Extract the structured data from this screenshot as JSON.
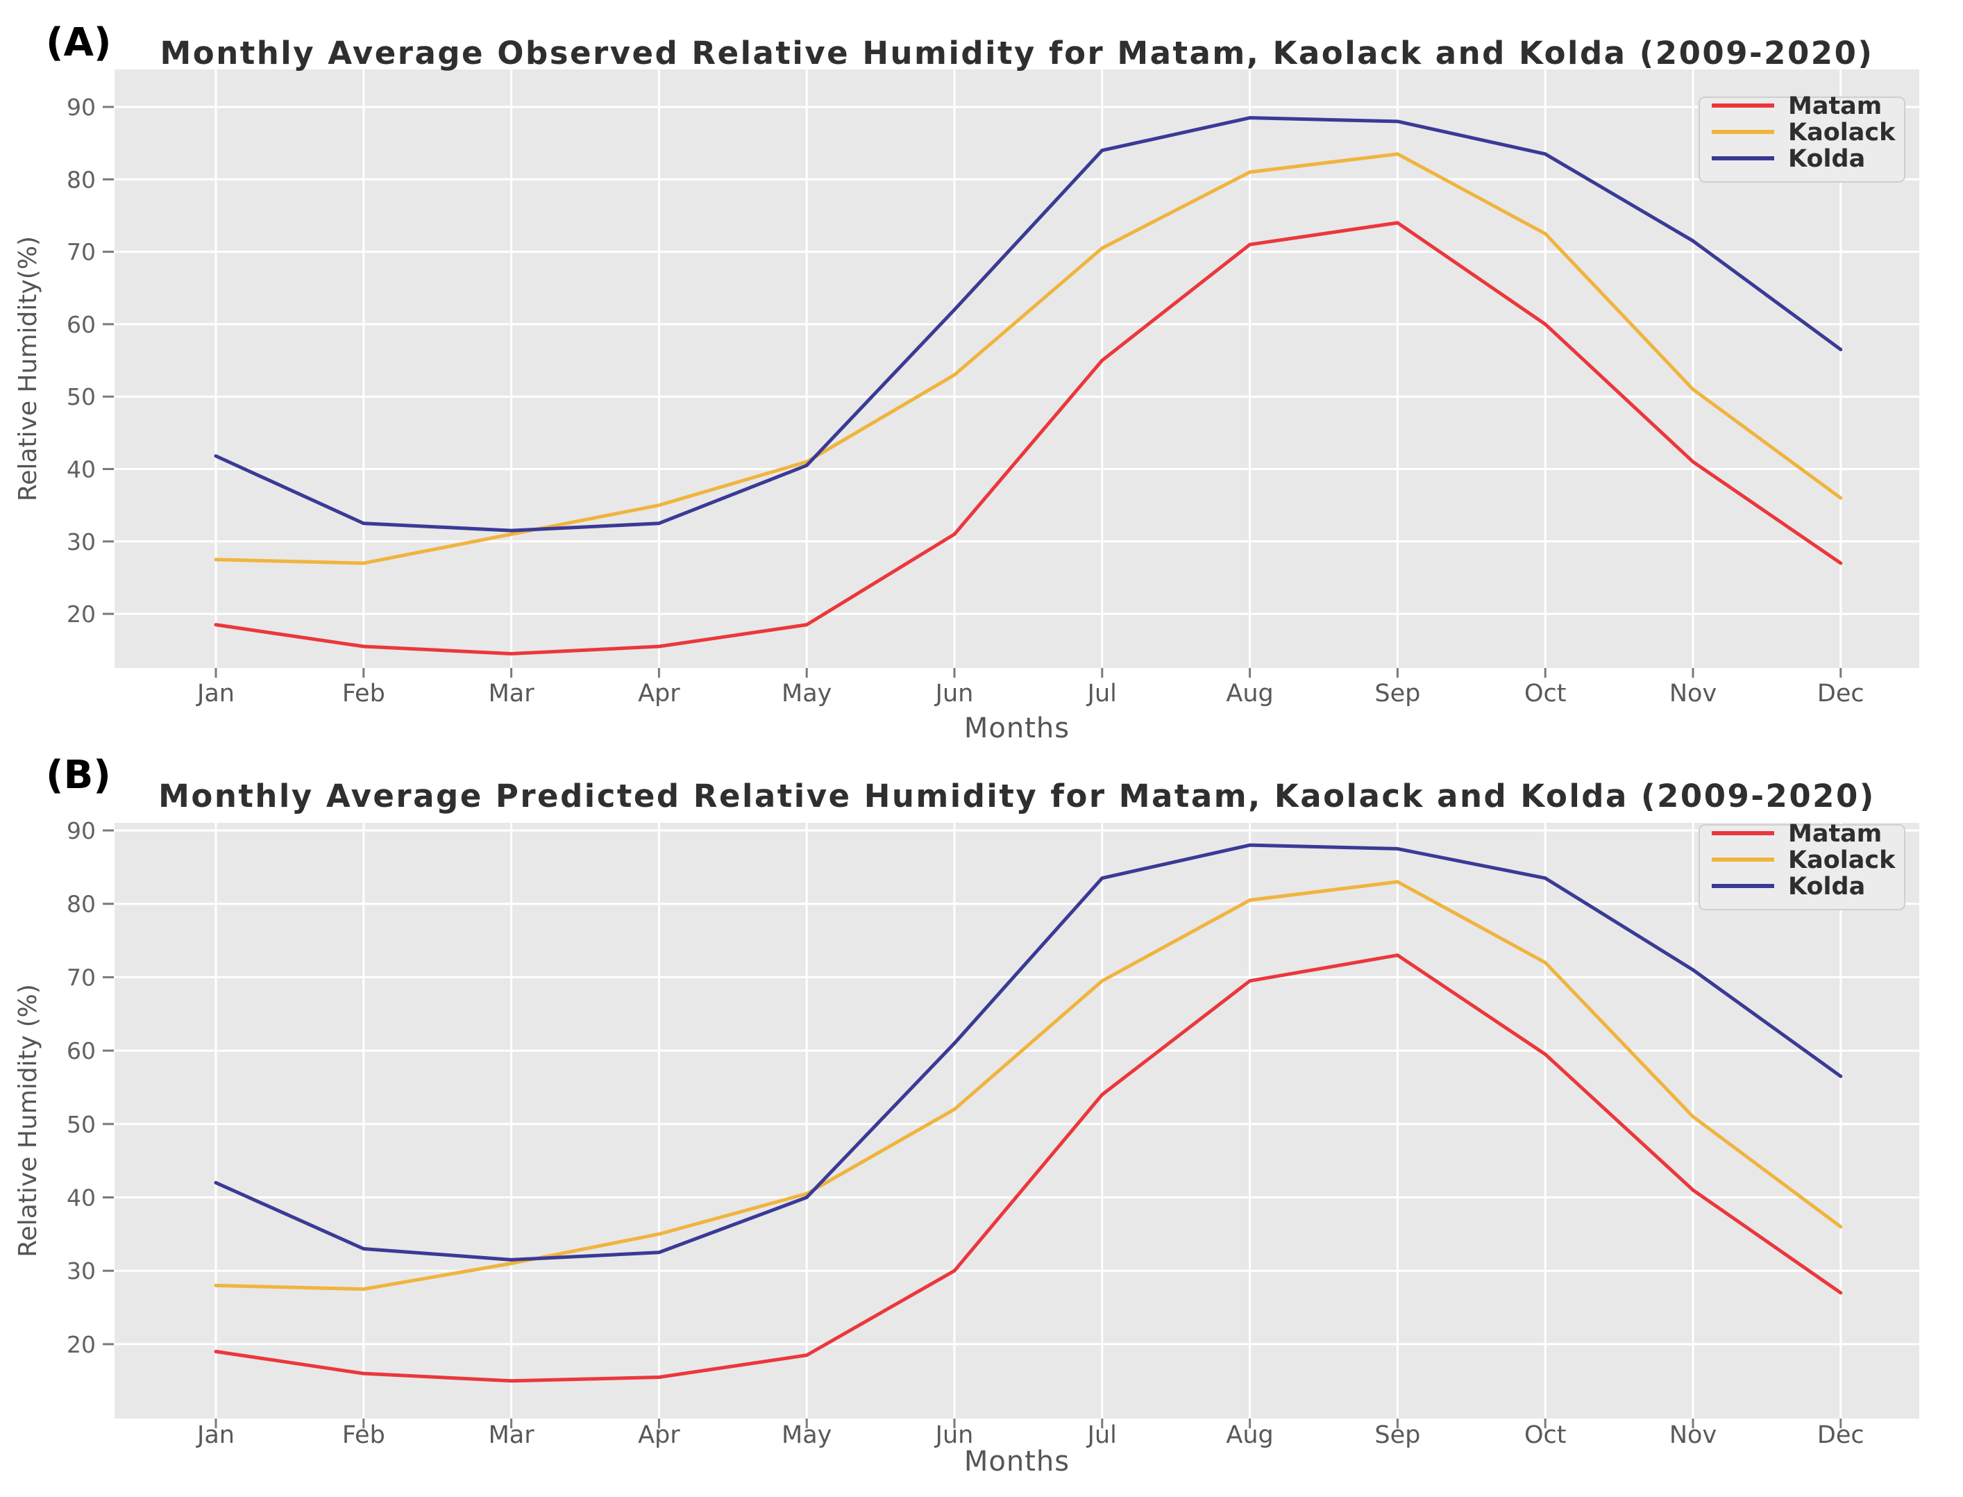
{
  "figure": {
    "background": "#ffffff",
    "panel_background": "#e8e8e8",
    "grid_color": "#ffffff",
    "tick_color": "#7a7a7a",
    "legend_box_fill": "#ececec",
    "legend_box_border": "#cfcfcf"
  },
  "chart_data": [
    {
      "id": "observed",
      "type": "line",
      "corner_label": "(A)",
      "title": "Monthly Average Observed Relative Humidity for Matam, Kaolack and Kolda (2009-2020)",
      "xlabel": "Months",
      "ylabel": "Relative Humidity(%)",
      "categories": [
        "Jan",
        "Feb",
        "Mar",
        "Apr",
        "May",
        "Jun",
        "Jul",
        "Aug",
        "Sep",
        "Oct",
        "Nov",
        "Dec"
      ],
      "yticks": [
        20,
        30,
        40,
        50,
        60,
        70,
        80,
        90
      ],
      "ylim": [
        12.5,
        95.2
      ],
      "grid": true,
      "legend_position": "top-right",
      "series": [
        {
          "name": "Matam",
          "color": "#eb373c",
          "values": [
            18.5,
            15.5,
            14.5,
            15.5,
            18.5,
            31,
            55,
            71,
            74,
            60,
            41,
            27
          ]
        },
        {
          "name": "Kaolack",
          "color": "#f0b43e",
          "values": [
            27.5,
            27,
            31,
            35,
            41,
            53,
            70.5,
            81,
            83.5,
            72.5,
            51,
            36
          ]
        },
        {
          "name": "Kolda",
          "color": "#3a3a96",
          "values": [
            41.8,
            32.5,
            31.5,
            32.5,
            40.5,
            62,
            84,
            88.5,
            88,
            83.5,
            71.5,
            56.5
          ]
        }
      ]
    },
    {
      "id": "predicted",
      "type": "line",
      "corner_label": "(B)",
      "title": "Monthly Average Predicted Relative Humidity for Matam, Kaolack and Kolda (2009-2020)",
      "xlabel": "Months",
      "ylabel": "Relative Humidity (%)",
      "categories": [
        "Jan",
        "Feb",
        "Mar",
        "Apr",
        "May",
        "Jun",
        "Jul",
        "Aug",
        "Sep",
        "Oct",
        "Nov",
        "Dec"
      ],
      "yticks": [
        20,
        30,
        40,
        50,
        60,
        70,
        80,
        90
      ],
      "ylim": [
        9.9,
        91.0
      ],
      "grid": true,
      "legend_position": "top-right",
      "series": [
        {
          "name": "Matam",
          "color": "#eb373c",
          "values": [
            19,
            16,
            15,
            15.5,
            18.5,
            30,
            54,
            69.5,
            73,
            59.5,
            41,
            27
          ]
        },
        {
          "name": "Kaolack",
          "color": "#f0b43e",
          "values": [
            28,
            27.5,
            31,
            35,
            40.5,
            52,
            69.5,
            80.5,
            83,
            72,
            51,
            36
          ]
        },
        {
          "name": "Kolda",
          "color": "#3a3a96",
          "values": [
            42,
            33,
            31.5,
            32.5,
            40,
            61,
            83.5,
            88,
            87.5,
            83.5,
            71,
            56.5
          ]
        }
      ]
    }
  ]
}
